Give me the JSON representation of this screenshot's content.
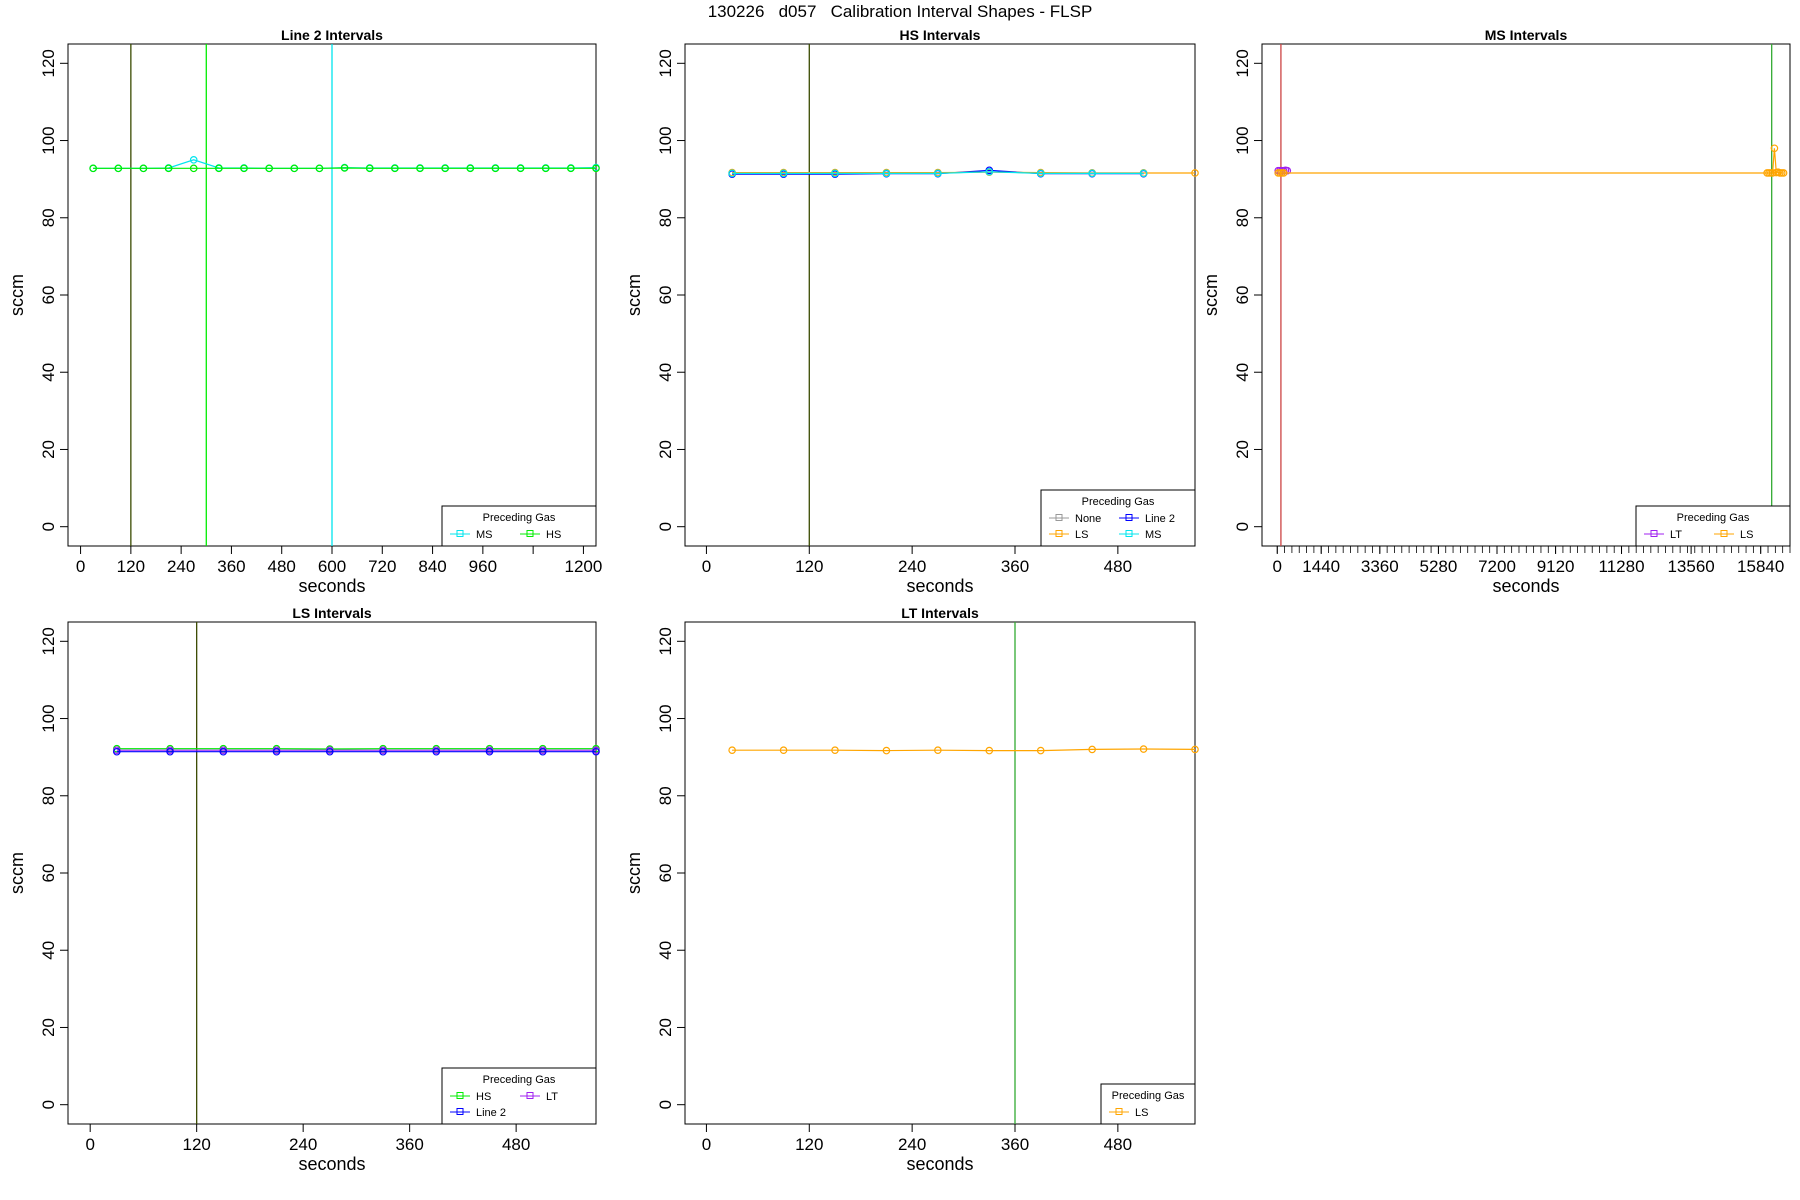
{
  "main_title": "130226   d057   Calibration Interval Shapes - FLSP",
  "colors": {
    "None": "#999999",
    "LS": "#ffa500",
    "Line 2": "#0000ff",
    "MS": "#00e5ee",
    "HS": "#00ee00",
    "LT": "#a020f0",
    "dark_vline": "#3a4a00",
    "red_vline": "#cc4444",
    "green_vline": "#33aa33"
  },
  "chart_data": [
    {
      "type": "line",
      "title": "Line 2 Intervals",
      "xlabel": "seconds",
      "ylabel": "sccm",
      "xlim": [
        -30,
        1230
      ],
      "ylim": [
        -5,
        125
      ],
      "xticks": [
        0,
        120,
        240,
        360,
        480,
        600,
        720,
        840,
        960,
        1080,
        1200
      ],
      "xtick_labels": [
        "0",
        "120",
        "240",
        "360",
        "480",
        "600",
        "720",
        "840",
        "960",
        "",
        "1200"
      ],
      "yticks": [
        0,
        20,
        40,
        60,
        80,
        100,
        120
      ],
      "vlines": [
        {
          "x": 120,
          "color": "#3a4a00"
        },
        {
          "x": 300,
          "color": "#00ee00"
        },
        {
          "x": 600,
          "color": "#00e5ee"
        }
      ],
      "series": [
        {
          "name": "MS",
          "color": "#00e5ee",
          "x": [
            30,
            90,
            150,
            210,
            270,
            330,
            390,
            450,
            510,
            570,
            630,
            690,
            750,
            810,
            870,
            930,
            990,
            1050,
            1110,
            1170,
            1230
          ],
          "y": [
            92.8,
            92.8,
            92.8,
            92.9,
            95.0,
            92.9,
            92.9,
            92.8,
            92.8,
            92.8,
            93.0,
            92.9,
            92.9,
            92.9,
            92.9,
            92.9,
            92.9,
            92.9,
            92.9,
            92.9,
            93.0
          ]
        },
        {
          "name": "HS",
          "color": "#00ee00",
          "x": [
            30,
            90,
            150,
            210,
            270,
            330,
            390,
            450,
            510,
            570,
            630,
            690,
            750,
            810,
            870,
            930,
            990,
            1050,
            1110,
            1170,
            1230
          ],
          "y": [
            92.8,
            92.8,
            92.8,
            92.8,
            92.8,
            92.8,
            92.8,
            92.8,
            92.8,
            92.8,
            92.9,
            92.8,
            92.8,
            92.8,
            92.8,
            92.8,
            92.8,
            92.8,
            92.8,
            92.8,
            92.8
          ]
        }
      ],
      "legend": {
        "title": "Preceding Gas",
        "position": "bottom-right",
        "columns": 2,
        "entries": [
          "MS",
          "HS"
        ]
      }
    },
    {
      "type": "line",
      "title": "HS Intervals",
      "xlabel": "seconds",
      "ylabel": "sccm",
      "xlim": [
        -25,
        570
      ],
      "ylim": [
        -5,
        125
      ],
      "xticks": [
        0,
        120,
        240,
        360,
        480
      ],
      "xtick_labels": [
        "0",
        "120",
        "240",
        "360",
        "480"
      ],
      "yticks": [
        0,
        20,
        40,
        60,
        80,
        100,
        120
      ],
      "vlines": [
        {
          "x": 120,
          "color": "#3a4a00"
        }
      ],
      "series": [
        {
          "name": "None",
          "color": "#999999",
          "x": [
            30,
            90,
            150,
            210,
            270,
            330,
            390,
            450,
            510
          ],
          "y": [
            91.6,
            91.6,
            91.6,
            91.6,
            91.6,
            91.9,
            91.6,
            91.6,
            91.6
          ]
        },
        {
          "name": "Line 2",
          "color": "#0000ff",
          "x": [
            30,
            90,
            150,
            210,
            270,
            330,
            390,
            450,
            510
          ],
          "y": [
            91.3,
            91.3,
            91.3,
            91.4,
            91.4,
            92.3,
            91.4,
            91.4,
            91.4
          ]
        },
        {
          "name": "LS",
          "color": "#ffa500",
          "x": [
            30,
            90,
            150,
            210,
            270,
            330,
            390,
            450,
            510,
            570
          ],
          "y": [
            91.7,
            91.7,
            91.7,
            91.7,
            91.7,
            91.8,
            91.7,
            91.6,
            91.6,
            91.6
          ]
        },
        {
          "name": "MS",
          "color": "#00e5ee",
          "x": [
            30,
            90,
            150,
            210,
            270,
            330,
            390,
            450,
            510
          ],
          "y": [
            91.5,
            91.5,
            91.5,
            91.5,
            91.5,
            91.9,
            91.5,
            91.5,
            91.5
          ]
        }
      ],
      "legend": {
        "title": "Preceding Gas",
        "position": "bottom-right",
        "columns": 2,
        "entries": [
          "None",
          "Line 2",
          "LS",
          "MS"
        ]
      }
    },
    {
      "type": "line",
      "title": "MS Intervals",
      "xlabel": "seconds",
      "ylabel": "sccm",
      "xlim": [
        -500,
        16800
      ],
      "ylim": [
        -5,
        125
      ],
      "xticks": [
        0,
        1440,
        3360,
        5280,
        7200,
        9120,
        11280,
        13560,
        15840
      ],
      "xtick_labels": [
        "0",
        "1440",
        "3360",
        "5280",
        "7200",
        "9120",
        "11280",
        "13560",
        "15840"
      ],
      "minor_tick_step": 240,
      "yticks": [
        0,
        20,
        40,
        60,
        80,
        100,
        120
      ],
      "vlines": [
        {
          "x": 120,
          "color": "#cc4444"
        },
        {
          "x": 16200,
          "color": "#33aa33"
        }
      ],
      "series": [
        {
          "name": "LT",
          "color": "#a020f0",
          "x": [
            30,
            90,
            150,
            210,
            270,
            330
          ],
          "y": [
            92.2,
            92.2,
            92.2,
            92.2,
            92.3,
            92.2
          ]
        },
        {
          "name": "LS",
          "color": "#ffa500",
          "x": [
            30,
            90,
            150,
            210,
            16050,
            16110,
            16170,
            16230,
            16290,
            16350,
            16410,
            16470,
            16530,
            16590
          ],
          "y": [
            91.6,
            91.6,
            91.6,
            91.6,
            91.6,
            91.6,
            91.6,
            91.6,
            98.0,
            91.7,
            91.8,
            91.6,
            91.6,
            91.6
          ]
        }
      ],
      "legend": {
        "title": "Preceding Gas",
        "position": "bottom-right",
        "columns": 2,
        "entries": [
          "LT",
          "LS"
        ]
      }
    },
    {
      "type": "line",
      "title": "LS Intervals",
      "xlabel": "seconds",
      "ylabel": "sccm",
      "xlim": [
        -25,
        570
      ],
      "ylim": [
        -5,
        125
      ],
      "xticks": [
        0,
        120,
        240,
        360,
        480
      ],
      "xtick_labels": [
        "0",
        "120",
        "240",
        "360",
        "480"
      ],
      "yticks": [
        0,
        20,
        40,
        60,
        80,
        100,
        120
      ],
      "vlines": [
        {
          "x": 120,
          "color": "#3a4a00"
        }
      ],
      "series": [
        {
          "name": "HS",
          "color": "#00ee00",
          "x": [
            30,
            90,
            150,
            210,
            270,
            330,
            390,
            450,
            510,
            570
          ],
          "y": [
            92.2,
            92.2,
            92.2,
            92.2,
            92.1,
            92.2,
            92.2,
            92.2,
            92.2,
            92.2
          ]
        },
        {
          "name": "LT",
          "color": "#a020f0",
          "x": [
            30,
            90,
            150,
            210,
            270,
            330,
            390,
            450,
            510,
            570
          ],
          "y": [
            91.8,
            91.8,
            91.8,
            91.8,
            91.8,
            91.8,
            91.8,
            91.8,
            91.8,
            91.8
          ]
        },
        {
          "name": "Line 2",
          "color": "#0000ff",
          "x": [
            30,
            90,
            150,
            210,
            270,
            330,
            390,
            450,
            510,
            570
          ],
          "y": [
            91.4,
            91.4,
            91.4,
            91.4,
            91.4,
            91.4,
            91.4,
            91.4,
            91.4,
            91.4
          ]
        }
      ],
      "legend": {
        "title": "Preceding Gas",
        "position": "bottom-right",
        "columns": 2,
        "entries": [
          "HS",
          "LT",
          "Line 2"
        ]
      }
    },
    {
      "type": "line",
      "title": "LT Intervals",
      "xlabel": "seconds",
      "ylabel": "sccm",
      "xlim": [
        -25,
        570
      ],
      "ylim": [
        -5,
        125
      ],
      "xticks": [
        0,
        120,
        240,
        360,
        480
      ],
      "xtick_labels": [
        "0",
        "120",
        "240",
        "360",
        "480"
      ],
      "yticks": [
        0,
        20,
        40,
        60,
        80,
        100,
        120
      ],
      "vlines": [
        {
          "x": 360,
          "color": "#33aa33"
        }
      ],
      "series": [
        {
          "name": "LS",
          "color": "#ffa500",
          "x": [
            30,
            90,
            150,
            210,
            270,
            330,
            390,
            450,
            510,
            570
          ],
          "y": [
            91.8,
            91.8,
            91.8,
            91.7,
            91.8,
            91.7,
            91.7,
            92.0,
            92.1,
            92.0
          ]
        }
      ],
      "legend": {
        "title": "Preceding Gas",
        "position": "bottom-right",
        "columns": 1,
        "entries": [
          "LS"
        ]
      }
    }
  ]
}
